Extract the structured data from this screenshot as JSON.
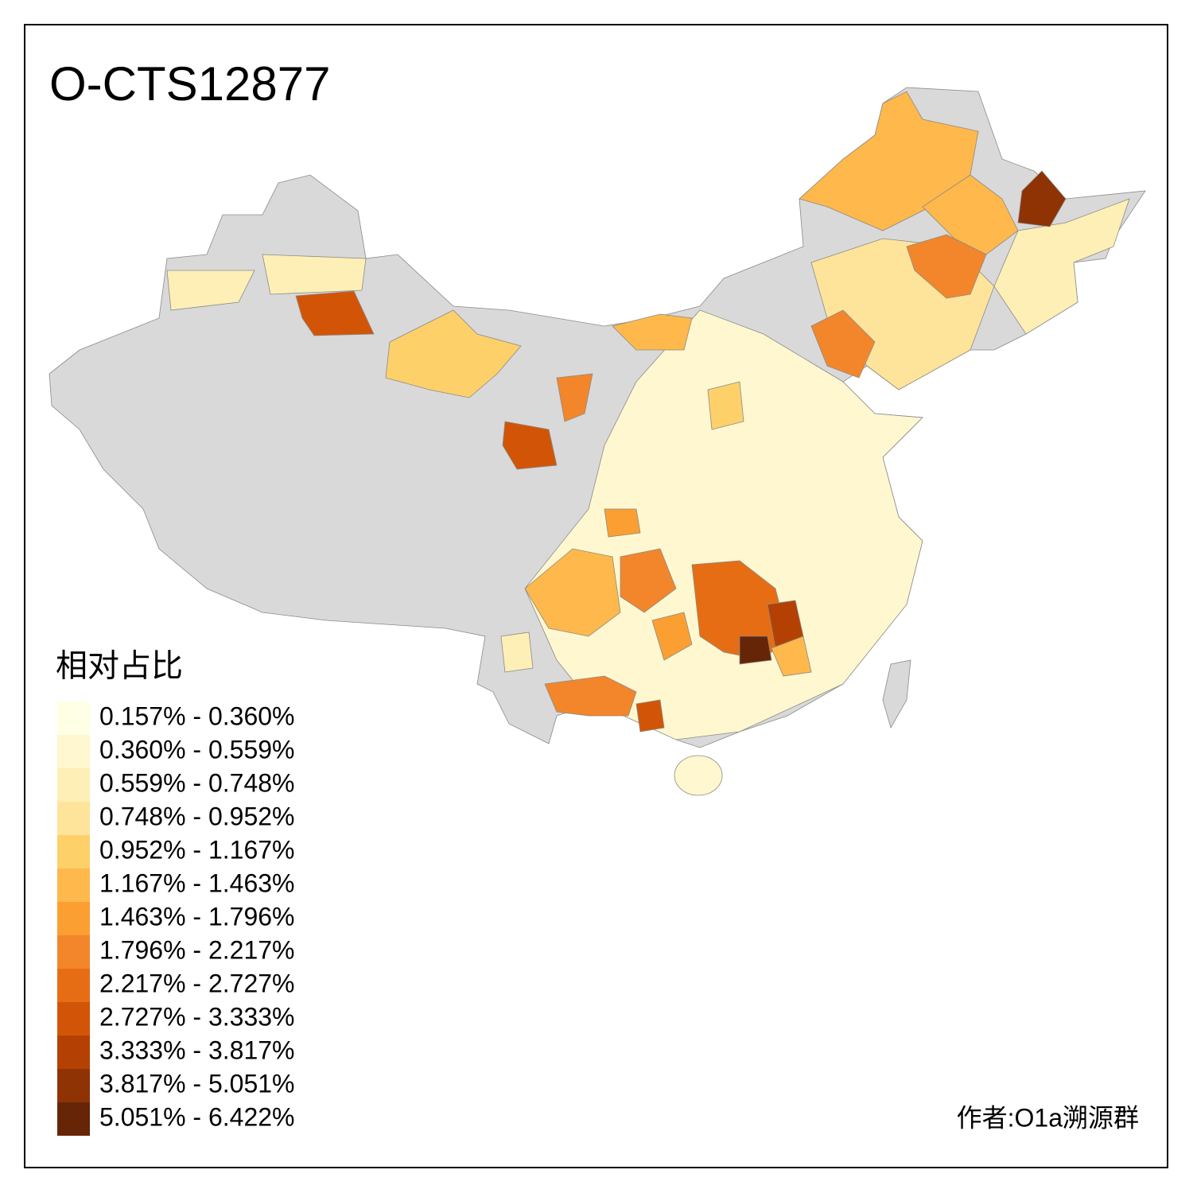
{
  "title": "O-CTS12877",
  "legend": {
    "title": "相对占比",
    "items": [
      {
        "label": "0.157% - 0.360%",
        "color": "#ffffe5"
      },
      {
        "label": "0.360% - 0.559%",
        "color": "#fff7cf"
      },
      {
        "label": "0.559% - 0.748%",
        "color": "#feefb6"
      },
      {
        "label": "0.748% - 0.952%",
        "color": "#fee49a"
      },
      {
        "label": "0.952% - 1.167%",
        "color": "#fed06a"
      },
      {
        "label": "1.167% - 1.463%",
        "color": "#feb84b"
      },
      {
        "label": "1.463% - 1.796%",
        "color": "#fb9f33"
      },
      {
        "label": "1.796% - 2.217%",
        "color": "#f3862a"
      },
      {
        "label": "2.217% - 2.727%",
        "color": "#e66d14"
      },
      {
        "label": "2.727% - 3.333%",
        "color": "#d25507"
      },
      {
        "label": "3.333% - 3.817%",
        "color": "#b44103"
      },
      {
        "label": "3.817% - 5.051%",
        "color": "#8f3304"
      },
      {
        "label": "5.051% - 6.422%",
        "color": "#662506"
      }
    ]
  },
  "credit": "作者:O1a溯源群"
}
